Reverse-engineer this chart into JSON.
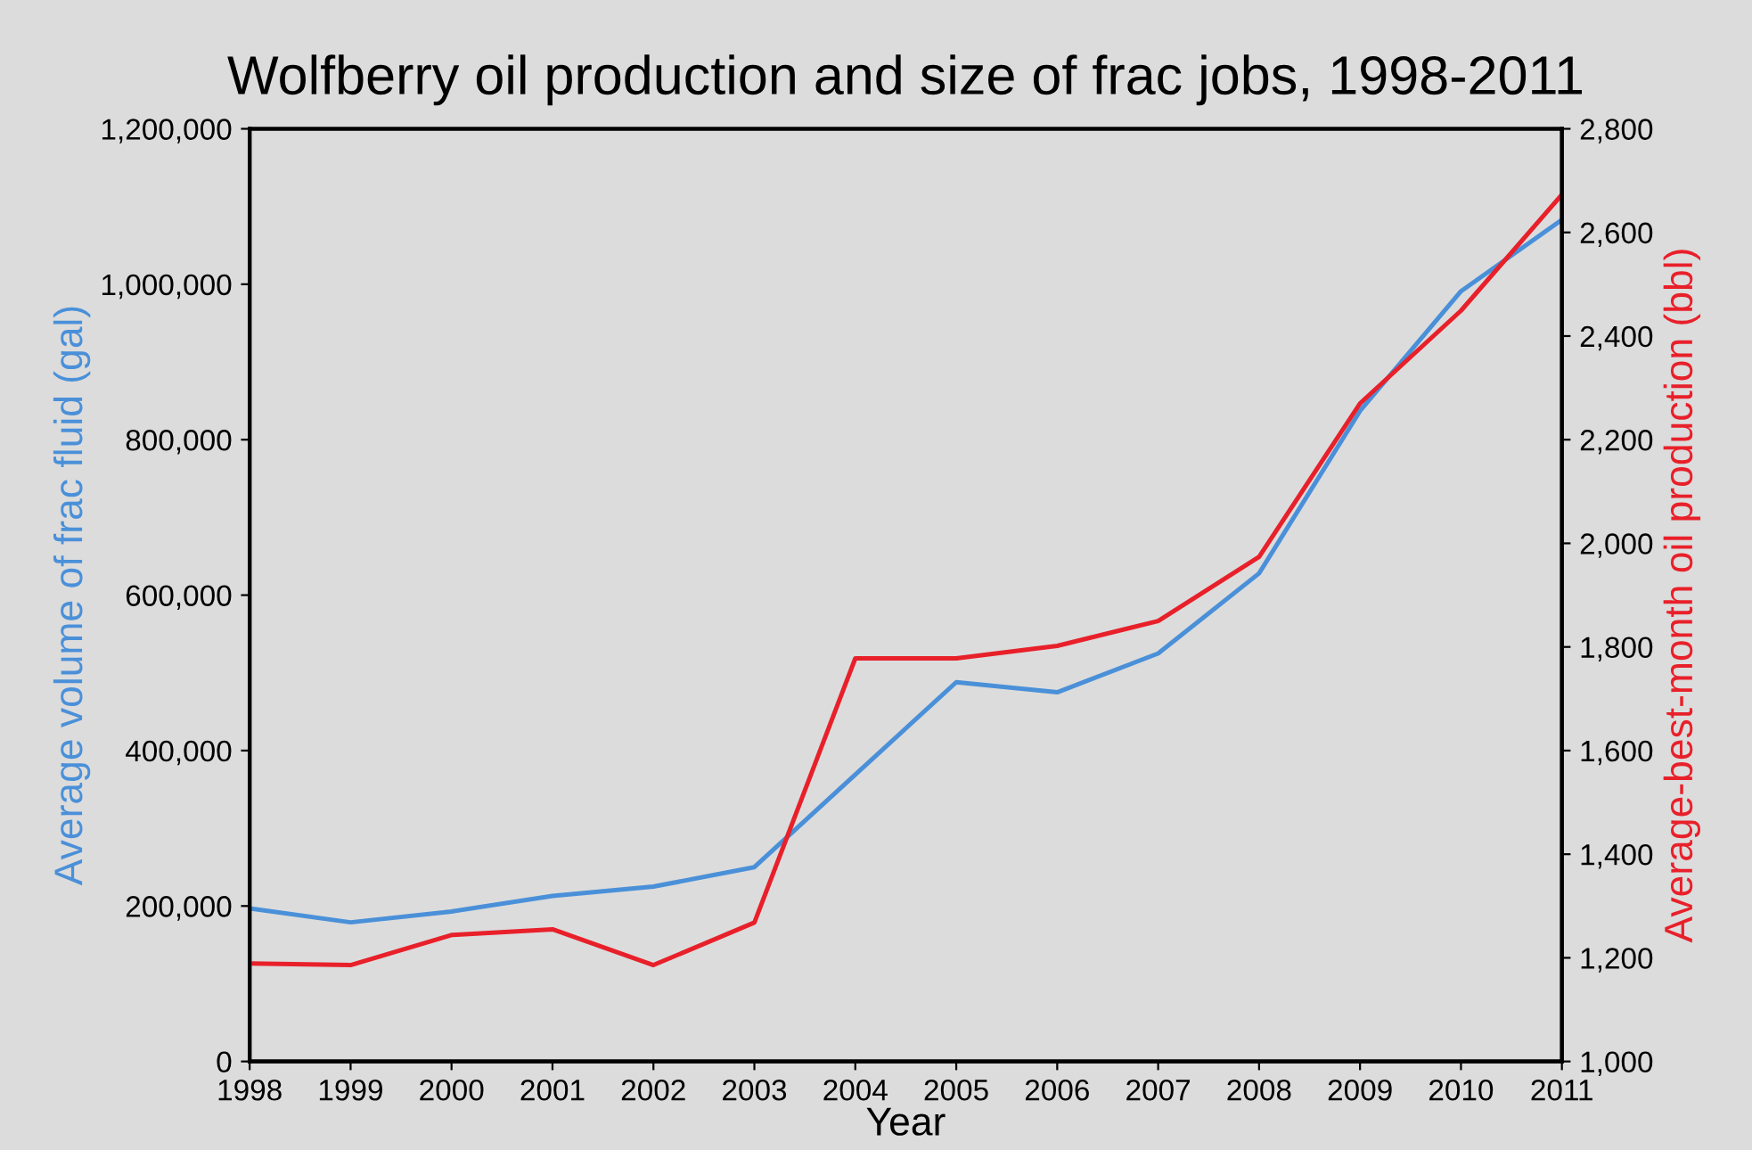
{
  "chart_data": {
    "type": "line",
    "title": "Wolfberry oil production and size of frac jobs, 1998-2011",
    "xlabel": "Year",
    "ylabel": "Average volume of frac fluid (gal)",
    "y2label": "Average-best-month oil production (bbl)",
    "x": [
      1998,
      1999,
      2000,
      2001,
      2002,
      2003,
      2004,
      2005,
      2006,
      2007,
      2008,
      2009,
      2010,
      2011
    ],
    "xlim": [
      1998,
      2011
    ],
    "xticks": [
      1998,
      1999,
      2000,
      2001,
      2002,
      2003,
      2004,
      2005,
      2006,
      2007,
      2008,
      2009,
      2010,
      2011
    ],
    "ylim": [
      0,
      1200000
    ],
    "yticks": [
      {
        "value": 0,
        "label": "0"
      },
      {
        "value": 200000,
        "label": "200,000"
      },
      {
        "value": 400000,
        "label": "400,000"
      },
      {
        "value": 600000,
        "label": "600,000"
      },
      {
        "value": 800000,
        "label": "800,000"
      },
      {
        "value": 1000000,
        "label": "1,000,000"
      },
      {
        "value": 1200000,
        "label": "1,200,000"
      }
    ],
    "y2lim": [
      1000,
      2800
    ],
    "y2ticks": [
      {
        "value": 1000,
        "label": "1,000"
      },
      {
        "value": 1200,
        "label": "1,200"
      },
      {
        "value": 1400,
        "label": "1,400"
      },
      {
        "value": 1600,
        "label": "1,600"
      },
      {
        "value": 1800,
        "label": "1,800"
      },
      {
        "value": 2000,
        "label": "2,000"
      },
      {
        "value": 2200,
        "label": "2,200"
      },
      {
        "value": 2400,
        "label": "2,400"
      },
      {
        "value": 2600,
        "label": "2,600"
      },
      {
        "value": 2800,
        "label": "2,800"
      }
    ],
    "series": [
      {
        "color": "#4a90d9",
        "values": [
          197000,
          179000,
          193000,
          213000,
          225000,
          250000,
          369000,
          488000,
          475000,
          525000,
          628000,
          837000,
          991000,
          1083000
        ]
      },
      {
        "color": "#e8202a",
        "axis": "y2",
        "values": [
          1189,
          1186,
          1244,
          1255,
          1186,
          1268,
          1778,
          1778,
          1802,
          1850,
          1974,
          2270,
          2449,
          2673
        ]
      }
    ],
    "grid": false,
    "marker": "none",
    "line_style": "solid"
  }
}
